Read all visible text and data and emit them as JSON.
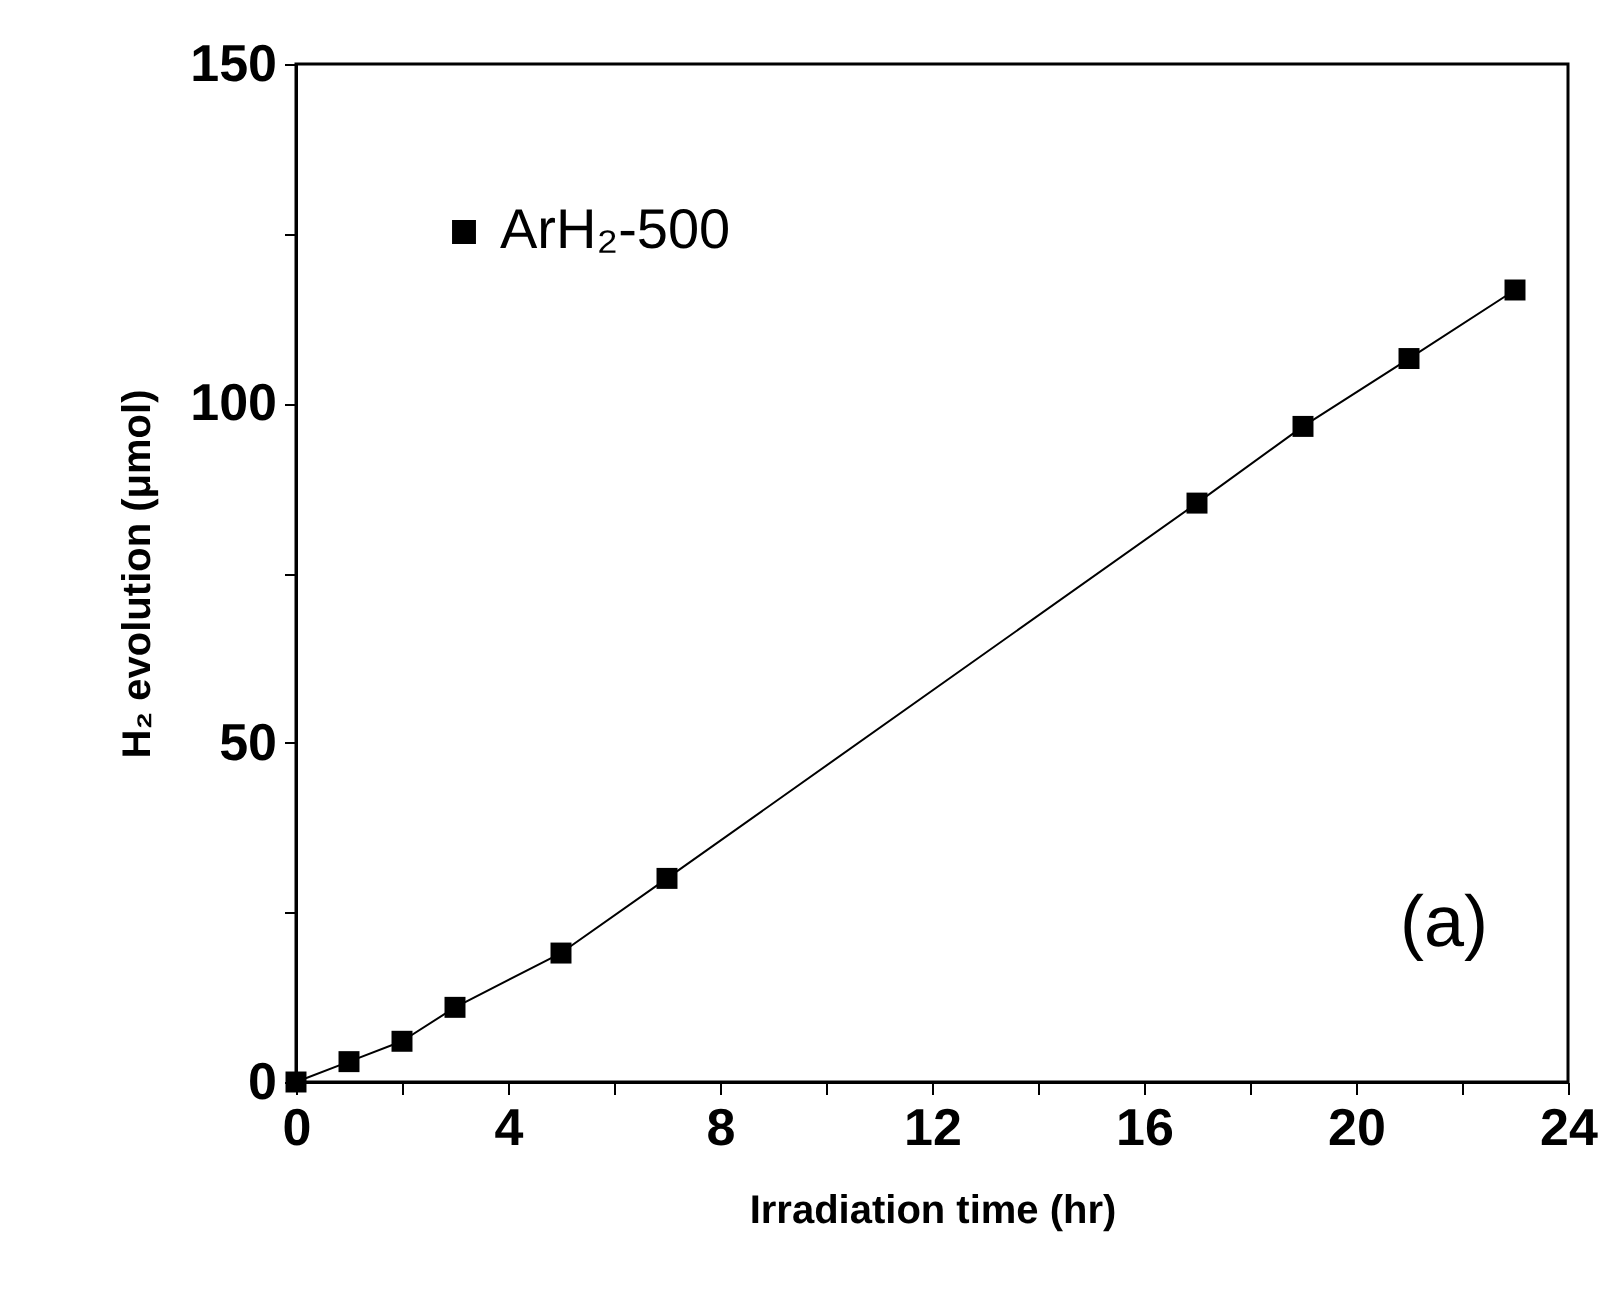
{
  "chart_data": {
    "type": "line",
    "xlabel": "Irradiation time (hr)",
    "ylabel": "H₂ evolution (μmol)",
    "x": [
      0,
      1,
      2,
      3,
      5,
      7,
      17,
      19,
      21,
      23
    ],
    "series": [
      {
        "name": "ArH₂-500",
        "color": "#000000",
        "values": [
          0,
          3,
          6,
          11,
          19,
          30,
          85.3,
          96.6,
          106.6,
          116.7
        ]
      }
    ],
    "xlim": [
      0,
      24
    ],
    "ylim": [
      0,
      150
    ],
    "xticks": [
      0,
      {
        "value": 2,
        "label": null
      },
      4,
      {
        "value": 6,
        "label": null
      },
      8,
      {
        "value": 10,
        "label": null
      },
      12,
      {
        "value": 14,
        "label": null
      },
      16,
      {
        "value": 18,
        "label": null
      },
      20,
      {
        "value": 22,
        "label": null
      },
      24
    ],
    "yticks": [
      0,
      {
        "value": 25,
        "label": null
      },
      50,
      {
        "value": 75,
        "label": null
      },
      100,
      {
        "value": 125,
        "label": null
      },
      150
    ],
    "marker": "square",
    "line_style": "solid",
    "legend": "top left",
    "grid": false,
    "annotations": [
      "(a)"
    ]
  }
}
